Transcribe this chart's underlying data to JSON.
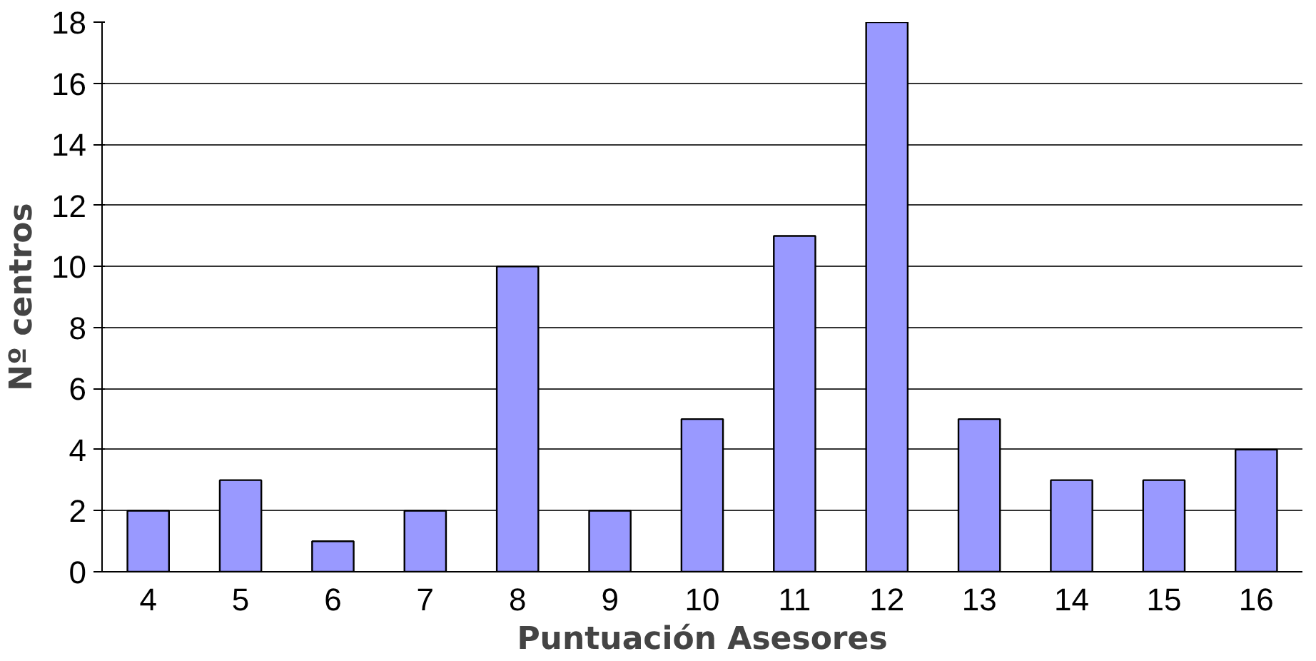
{
  "chart_data": {
    "type": "bar",
    "xlabel": "Puntuación Asesores",
    "ylabel": "Nº centros",
    "categories": [
      "4",
      "5",
      "6",
      "7",
      "8",
      "9",
      "10",
      "11",
      "12",
      "13",
      "14",
      "15",
      "16"
    ],
    "values": [
      2,
      3,
      1,
      2,
      10,
      2,
      5,
      11,
      18,
      5,
      3,
      3,
      4
    ],
    "color": "#9999ff",
    "ylim": [
      0,
      18
    ],
    "yticks": [
      0,
      2,
      4,
      6,
      8,
      10,
      12,
      14,
      16,
      18
    ],
    "grid": "y"
  }
}
